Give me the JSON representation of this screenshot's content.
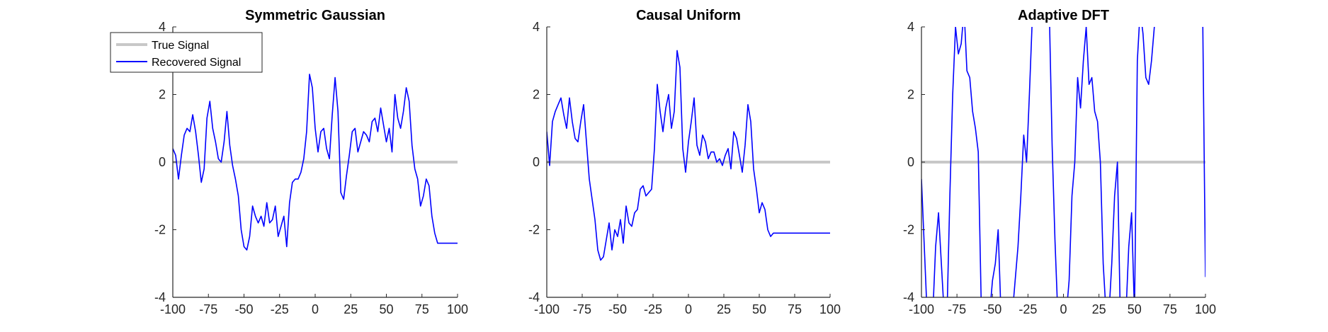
{
  "figure": {
    "legend": {
      "entries": [
        {
          "label": "True Signal",
          "color": "#c8c8c8"
        },
        {
          "label": "Recovered Signal",
          "color": "#0000ff"
        }
      ],
      "placement": "top-left of first panel"
    }
  },
  "chart_data": [
    {
      "type": "line",
      "title": "Symmetric Gaussian",
      "xlabel": "",
      "ylabel": "",
      "xlim": [
        -100,
        100
      ],
      "ylim": [
        -4,
        4
      ],
      "xticks": [
        -100,
        -75,
        -50,
        -25,
        0,
        25,
        50,
        75,
        100
      ],
      "yticks": [
        -4,
        -2,
        0,
        2,
        4
      ],
      "grid": false,
      "series": [
        {
          "name": "True Signal",
          "color": "#c8c8c8",
          "x": [
            -100,
            100
          ],
          "y": [
            0,
            0
          ]
        },
        {
          "name": "Recovered Signal",
          "color": "#0000ff",
          "x": [
            -100,
            -98,
            -96,
            -94,
            -92,
            -90,
            -88,
            -86,
            -84,
            -82,
            -80,
            -78,
            -76,
            -74,
            -72,
            -70,
            -68,
            -66,
            -64,
            -62,
            -60,
            -58,
            -56,
            -54,
            -52,
            -50,
            -48,
            -46,
            -44,
            -42,
            -40,
            -38,
            -36,
            -34,
            -32,
            -30,
            -28,
            -26,
            -24,
            -22,
            -20,
            -18,
            -16,
            -14,
            -12,
            -10,
            -8,
            -6,
            -4,
            -2,
            0,
            2,
            4,
            6,
            8,
            10,
            12,
            14,
            16,
            18,
            20,
            22,
            24,
            26,
            28,
            30,
            32,
            34,
            36,
            38,
            40,
            42,
            44,
            46,
            48,
            50,
            52,
            54,
            56,
            58,
            60,
            62,
            64,
            66,
            68,
            70,
            72,
            74,
            76,
            78,
            80,
            82,
            84,
            86,
            88,
            90,
            92,
            94,
            96,
            98,
            100
          ],
          "y": [
            0.4,
            0.2,
            -0.5,
            0.2,
            0.8,
            1.0,
            0.9,
            1.4,
            0.9,
            0.2,
            -0.6,
            -0.2,
            1.3,
            1.8,
            1.0,
            0.6,
            0.1,
            0.0,
            0.6,
            1.5,
            0.5,
            -0.1,
            -0.5,
            -1.0,
            -2.0,
            -2.5,
            -2.6,
            -2.2,
            -1.3,
            -1.6,
            -1.8,
            -1.6,
            -1.9,
            -1.2,
            -1.8,
            -1.7,
            -1.3,
            -2.2,
            -1.9,
            -1.6,
            -2.5,
            -1.2,
            -0.6,
            -0.5,
            -0.5,
            -0.3,
            0.1,
            0.9,
            2.6,
            2.2,
            1.0,
            0.3,
            0.9,
            1.0,
            0.4,
            0.1,
            1.4,
            2.5,
            1.5,
            -0.9,
            -1.1,
            -0.4,
            0.2,
            0.9,
            1.0,
            0.3,
            0.6,
            0.9,
            0.8,
            0.6,
            1.2,
            1.3,
            0.9,
            1.6,
            1.1,
            0.6,
            1.0,
            0.3,
            2.0,
            1.3,
            1.0,
            1.5,
            2.2,
            1.8,
            0.5,
            -0.2,
            -0.5,
            -1.3,
            -1.0,
            -0.5,
            -0.7,
            -1.6,
            -2.1,
            -2.4,
            -2.4,
            -2.4,
            -2.4,
            -2.4,
            -2.4,
            -2.4,
            -2.4
          ]
        }
      ]
    },
    {
      "type": "line",
      "title": "Causal Uniform",
      "xlabel": "",
      "ylabel": "",
      "xlim": [
        -100,
        100
      ],
      "ylim": [
        -4,
        4
      ],
      "xticks": [
        -100,
        -75,
        -50,
        -25,
        0,
        25,
        50,
        75,
        100
      ],
      "yticks": [
        -4,
        -2,
        0,
        2,
        4
      ],
      "grid": false,
      "series": [
        {
          "name": "True Signal",
          "color": "#c8c8c8",
          "x": [
            -100,
            100
          ],
          "y": [
            0,
            0
          ]
        },
        {
          "name": "Recovered Signal",
          "color": "#0000ff",
          "x": [
            -100,
            -98,
            -96,
            -94,
            -92,
            -90,
            -88,
            -86,
            -84,
            -82,
            -80,
            -78,
            -76,
            -74,
            -72,
            -70,
            -68,
            -66,
            -64,
            -62,
            -60,
            -58,
            -56,
            -54,
            -52,
            -50,
            -48,
            -46,
            -44,
            -42,
            -40,
            -38,
            -36,
            -34,
            -32,
            -30,
            -28,
            -26,
            -24,
            -22,
            -20,
            -18,
            -16,
            -14,
            -12,
            -10,
            -8,
            -6,
            -4,
            -2,
            0,
            2,
            4,
            6,
            8,
            10,
            12,
            14,
            16,
            18,
            20,
            22,
            24,
            26,
            28,
            30,
            32,
            34,
            36,
            38,
            40,
            42,
            44,
            46,
            48,
            50,
            52,
            54,
            56,
            58,
            60,
            62,
            64,
            66,
            68,
            70,
            72,
            74,
            76,
            78,
            80,
            82,
            84,
            86,
            88,
            90,
            92,
            94,
            96,
            98,
            100
          ],
          "y": [
            0.9,
            -0.1,
            1.2,
            1.5,
            1.7,
            1.9,
            1.4,
            1.0,
            1.9,
            1.2,
            0.7,
            0.6,
            1.2,
            1.7,
            0.6,
            -0.5,
            -1.1,
            -1.7,
            -2.6,
            -2.9,
            -2.8,
            -2.3,
            -1.8,
            -2.6,
            -2.0,
            -2.2,
            -1.7,
            -2.4,
            -1.3,
            -1.8,
            -1.9,
            -1.5,
            -1.4,
            -0.8,
            -0.7,
            -1.0,
            -0.9,
            -0.8,
            0.4,
            2.3,
            1.5,
            0.9,
            1.6,
            2.0,
            1.0,
            1.5,
            3.3,
            2.8,
            0.4,
            -0.3,
            0.6,
            1.2,
            1.9,
            0.5,
            0.2,
            0.8,
            0.6,
            0.1,
            0.3,
            0.3,
            0.0,
            0.1,
            -0.1,
            0.2,
            0.4,
            -0.2,
            0.9,
            0.7,
            0.2,
            -0.3,
            0.5,
            1.7,
            1.2,
            -0.2,
            -0.8,
            -1.5,
            -1.2,
            -1.4,
            -2.0,
            -2.2,
            -2.1,
            -2.1,
            -2.1,
            -2.1,
            -2.1,
            -2.1,
            -2.1,
            -2.1,
            -2.1,
            -2.1,
            -2.1,
            -2.1,
            -2.1,
            -2.1,
            -2.1,
            -2.1,
            -2.1,
            -2.1,
            -2.1,
            -2.1,
            -2.1
          ]
        }
      ]
    },
    {
      "type": "line",
      "title": "Adaptive DFT",
      "xlabel": "",
      "ylabel": "",
      "xlim": [
        -100,
        100
      ],
      "ylim": [
        -4,
        4
      ],
      "xticks": [
        -100,
        -75,
        -50,
        -25,
        0,
        25,
        50,
        75,
        100
      ],
      "yticks": [
        -4,
        -2,
        0,
        2,
        4
      ],
      "grid": false,
      "series": [
        {
          "name": "True Signal",
          "color": "#c8c8c8",
          "x": [
            -100,
            100
          ],
          "y": [
            0,
            0
          ]
        },
        {
          "name": "Recovered Signal",
          "color": "#0000ff",
          "x": [
            -100,
            -98,
            -96,
            -94,
            -92,
            -90,
            -88,
            -86,
            -84,
            -82,
            -80,
            -78,
            -76,
            -74,
            -72,
            -70,
            -68,
            -66,
            -64,
            -62,
            -60,
            -58,
            -56,
            -54,
            -52,
            -50,
            -48,
            -46,
            -44,
            -42,
            -40,
            -38,
            -36,
            -34,
            -32,
            -30,
            -28,
            -26,
            -24,
            -22,
            -20,
            -18,
            -16,
            -14,
            -12,
            -10,
            -8,
            -6,
            -4,
            -2,
            0,
            2,
            4,
            6,
            8,
            10,
            12,
            14,
            16,
            18,
            20,
            22,
            24,
            26,
            28,
            30,
            32,
            34,
            36,
            38,
            40,
            42,
            44,
            46,
            48,
            50,
            52,
            54,
            56,
            58,
            60,
            62,
            64,
            66,
            68,
            70,
            72,
            74,
            76,
            78,
            80,
            82,
            84,
            86,
            88,
            90,
            92,
            94,
            96,
            98,
            100
          ],
          "y": [
            -0.5,
            -2.5,
            -4.5,
            -4.5,
            -4.5,
            -2.5,
            -1.5,
            -3.0,
            -4.5,
            -4.5,
            -1.0,
            2.0,
            4.0,
            3.2,
            3.5,
            4.5,
            2.7,
            2.5,
            1.5,
            1.0,
            0.3,
            -4.0,
            -4.5,
            -4.5,
            -4.5,
            -3.5,
            -3.0,
            -2.0,
            -4.5,
            -4.5,
            -4.5,
            -4.5,
            -4.5,
            -3.5,
            -2.5,
            -1.0,
            0.8,
            0.0,
            2.0,
            4.2,
            4.5,
            4.5,
            4.5,
            4.5,
            4.5,
            4.5,
            0.5,
            -2.3,
            -4.5,
            -4.5,
            -4.5,
            -4.5,
            -3.5,
            -1.0,
            0.0,
            2.5,
            1.6,
            3.0,
            4.0,
            2.3,
            2.5,
            1.5,
            1.2,
            0.0,
            -3.0,
            -4.5,
            -4.5,
            -3.0,
            -1.0,
            0.0,
            -4.5,
            -4.5,
            -4.5,
            -2.5,
            -1.5,
            -4.5,
            3.0,
            4.5,
            3.8,
            2.5,
            2.3,
            3.0,
            4.0,
            4.5,
            4.5,
            4.5,
            4.5,
            4.5,
            4.5,
            4.5,
            4.5,
            4.5,
            4.5,
            4.5,
            4.5,
            4.5,
            4.5,
            4.5,
            4.5,
            4.5,
            -3.4
          ]
        }
      ]
    }
  ]
}
